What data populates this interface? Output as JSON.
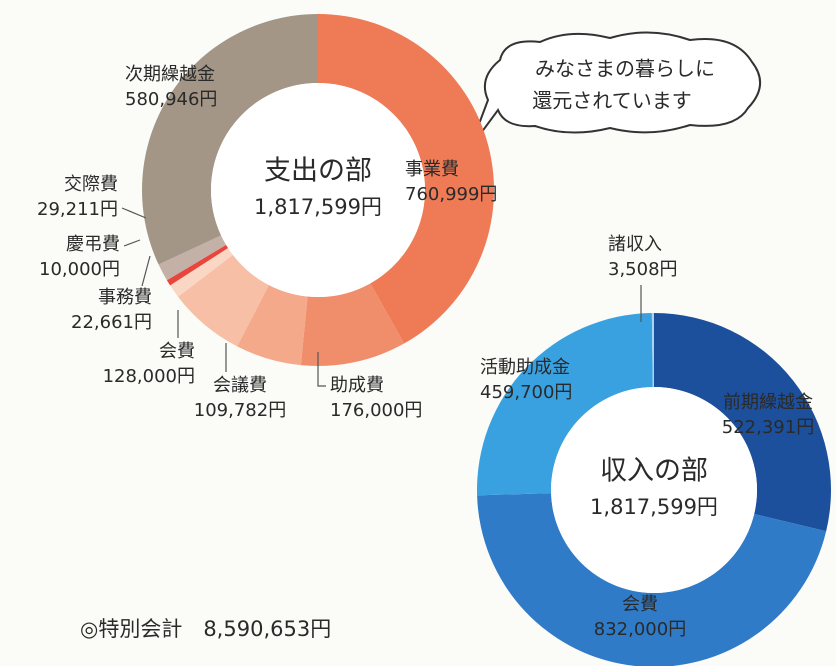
{
  "chart_data": [
    {
      "type": "pie",
      "title": "支出の部",
      "total_label": "1,817,599円",
      "categories": [
        "事業費",
        "助成費",
        "会議費",
        "会費",
        "事務費",
        "慶弔費",
        "交際費",
        "次期繰越金"
      ],
      "values": [
        760999,
        176000,
        109782,
        128000,
        22661,
        10000,
        29211,
        580946
      ],
      "value_labels": [
        "760,999円",
        "176,000円",
        "109,782円",
        "128,000円",
        "22,661円",
        "10,000円",
        "29,211円",
        "580,946円"
      ],
      "colors": [
        "#ee7a56",
        "#f08e6c",
        "#f4a98a",
        "#f7bfa5",
        "#fad6c4",
        "#e8453c",
        "#c3b0a6",
        "#a39686"
      ]
    },
    {
      "type": "pie",
      "title": "収入の部",
      "total_label": "1,817,599円",
      "categories": [
        "前期繰越金",
        "会費",
        "活動助成金",
        "諸収入"
      ],
      "values": [
        522391,
        832000,
        459700,
        3508
      ],
      "value_labels": [
        "522,391円",
        "832,000円",
        "459,700円",
        "3,508円"
      ],
      "colors": [
        "#1c4f9c",
        "#2f7bc8",
        "#3aa1e0",
        "#a9d4f0"
      ]
    }
  ],
  "annotation": [
    "みなさまの暮らしに",
    "還元されています"
  ],
  "footnote": "◎特別会計　8,590,653円"
}
